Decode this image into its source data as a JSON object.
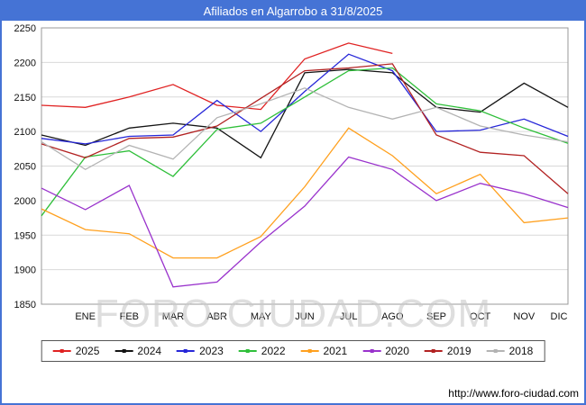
{
  "title": "Afiliados en Algarrobo a 31/8/2025",
  "watermark": "FORO-CIUDAD.COM",
  "footer_url": "http://www.foro-ciudad.com",
  "colors": {
    "frame_border": "#4573d5",
    "titlebar_bg": "#4573d5",
    "titlebar_text": "#ffffff",
    "grid": "#d9d9d9",
    "plot_border": "#999999",
    "axis_text": "#111111",
    "watermark": "#c9c9c9"
  },
  "chart_data": {
    "type": "line",
    "title": "Afiliados en Algarrobo a 31/8/2025",
    "xlabel": "",
    "ylabel": "",
    "ylim": [
      1850,
      2250
    ],
    "ytick_step": 50,
    "grid": "horizontal",
    "legend_position": "bottom",
    "note": "First point of each series sits at the plot left edge (unlabeled month preceding ENE); 2025 series ends at AGO per title date 31/8/2025.",
    "x_labels": [
      "",
      "ENE",
      "FEB",
      "MAR",
      "ABR",
      "MAY",
      "JUN",
      "JUL",
      "AGO",
      "SEP",
      "OCT",
      "NOV",
      "DIC"
    ],
    "series": [
      {
        "name": "2025",
        "color": "#e02222",
        "values": [
          2138,
          2135,
          2150,
          2168,
          2138,
          2132,
          2205,
          2228,
          2213,
          null,
          null,
          null,
          null
        ]
      },
      {
        "name": "2024",
        "color": "#141414",
        "values": [
          2095,
          2080,
          2105,
          2112,
          2105,
          2062,
          2185,
          2190,
          2185,
          2135,
          2128,
          2170,
          2135
        ]
      },
      {
        "name": "2023",
        "color": "#2626d8",
        "values": [
          2090,
          2082,
          2093,
          2095,
          2145,
          2100,
          2158,
          2212,
          2188,
          2100,
          2102,
          2118,
          2093
        ]
      },
      {
        "name": "2022",
        "color": "#2fbf3a",
        "values": [
          1978,
          2063,
          2072,
          2035,
          2103,
          2112,
          2150,
          2188,
          2192,
          2140,
          2130,
          2105,
          2083
        ]
      },
      {
        "name": "2021",
        "color": "#ffa01e",
        "values": [
          1988,
          1958,
          1952,
          1917,
          1917,
          1948,
          2020,
          2105,
          2065,
          2010,
          2038,
          1968,
          1975
        ]
      },
      {
        "name": "2020",
        "color": "#9932cc",
        "values": [
          2018,
          1987,
          2022,
          1875,
          1882,
          1940,
          1992,
          2063,
          2045,
          2000,
          2025,
          2010,
          1990
        ]
      },
      {
        "name": "2019",
        "color": "#b22222",
        "values": [
          2082,
          2062,
          2090,
          2092,
          2108,
          2148,
          2188,
          2192,
          2198,
          2095,
          2070,
          2065,
          2010
        ]
      },
      {
        "name": "2018",
        "color": "#b3b3b3",
        "values": [
          2085,
          2045,
          2080,
          2060,
          2120,
          2140,
          2163,
          2135,
          2118,
          2135,
          2108,
          2095,
          2085
        ]
      }
    ]
  }
}
